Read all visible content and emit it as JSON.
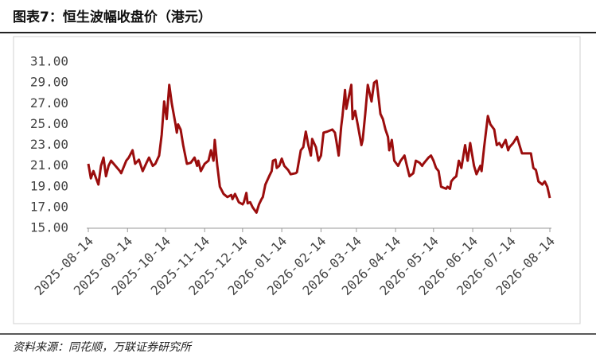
{
  "chart_data": {
    "type": "line",
    "title": "图表7：恒生波幅收盘价（港元）",
    "source": "资料来源：同花顺，万联证券研究所",
    "x": [
      "2025-08-14",
      "2025-08-16",
      "2025-08-18",
      "2025-08-22",
      "2025-08-24",
      "2025-08-26",
      "2025-08-28",
      "2025-08-30",
      "2025-09-01",
      "2025-09-08",
      "2025-09-09",
      "2025-09-13",
      "2025-09-15",
      "2025-09-18",
      "2025-09-20",
      "2025-09-23",
      "2025-09-26",
      "2025-09-29",
      "2025-10-01",
      "2025-10-04",
      "2025-10-06",
      "2025-10-09",
      "2025-10-11",
      "2025-10-13",
      "2025-10-15",
      "2025-10-17",
      "2025-10-19",
      "2025-10-22",
      "2025-10-23",
      "2025-10-24",
      "2025-10-26",
      "2025-10-28",
      "2025-10-31",
      "2025-11-03",
      "2025-11-06",
      "2025-11-08",
      "2025-11-09",
      "2025-11-11",
      "2025-11-14",
      "2025-11-17",
      "2025-11-19",
      "2025-11-21",
      "2025-11-22",
      "2025-11-24",
      "2025-11-26",
      "2025-11-29",
      "2025-12-02",
      "2025-12-05",
      "2025-12-06",
      "2025-12-08",
      "2025-12-11",
      "2025-12-14",
      "2025-12-15",
      "2025-12-17",
      "2025-12-18",
      "2025-12-20",
      "2025-12-22",
      "2025-12-25",
      "2025-12-27",
      "2025-12-29",
      "2025-12-30",
      "2026-01-01",
      "2026-01-04",
      "2026-01-06",
      "2026-01-07",
      "2026-01-09",
      "2026-01-10",
      "2026-01-12",
      "2026-01-14",
      "2026-01-16",
      "2026-01-19",
      "2026-01-21",
      "2026-01-25",
      "2026-01-26",
      "2026-01-29",
      "2026-01-31",
      "2026-02-02",
      "2026-02-04",
      "2026-02-06",
      "2026-02-07",
      "2026-02-10",
      "2026-02-12",
      "2026-02-14",
      "2026-02-16",
      "2026-02-19",
      "2026-02-23",
      "2026-02-25",
      "2026-02-26",
      "2026-02-28",
      "2026-03-02",
      "2026-03-03",
      "2026-03-05",
      "2026-03-06",
      "2026-03-10",
      "2026-03-11",
      "2026-03-13",
      "2026-03-15",
      "2026-03-18",
      "2026-03-19",
      "2026-03-21",
      "2026-03-23",
      "2026-03-26",
      "2026-03-28",
      "2026-03-30",
      "2026-04-02",
      "2026-04-04",
      "2026-04-06",
      "2026-04-08",
      "2026-04-09",
      "2026-04-11",
      "2026-04-13",
      "2026-04-16",
      "2026-04-18",
      "2026-04-21",
      "2026-04-23",
      "2026-04-25",
      "2026-04-28",
      "2026-04-30",
      "2026-05-03",
      "2026-05-05",
      "2026-05-06",
      "2026-05-08",
      "2026-05-10",
      "2026-05-12",
      "2026-05-14",
      "2026-05-16",
      "2026-05-18",
      "2026-05-20",
      "2026-05-24",
      "2026-05-25",
      "2026-05-27",
      "2026-05-28",
      "2026-05-30",
      "2026-06-01",
      "2026-06-03",
      "2026-06-05",
      "2026-06-08",
      "2026-06-10",
      "2026-06-12",
      "2026-06-15",
      "2026-06-17",
      "2026-06-20",
      "2026-06-21",
      "2026-06-23",
      "2026-06-26",
      "2026-06-28",
      "2026-07-01",
      "2026-07-03",
      "2026-07-05",
      "2026-07-07",
      "2026-07-10",
      "2026-07-12",
      "2026-07-13",
      "2026-07-16",
      "2026-07-19",
      "2026-07-23",
      "2026-07-27",
      "2026-07-30",
      "2026-08-01",
      "2026-08-03",
      "2026-08-05",
      "2026-08-08",
      "2026-08-10",
      "2026-08-12",
      "2026-08-14"
    ],
    "series": [
      {
        "name": "恒生波幅收盘价",
        "color": "#9b0d0d",
        "values": [
          21.2,
          19.8,
          20.5,
          19.2,
          21.0,
          21.8,
          20.0,
          21.0,
          21.5,
          20.5,
          20.3,
          21.5,
          21.8,
          22.5,
          21.2,
          21.6,
          20.5,
          21.3,
          21.8,
          21.0,
          21.2,
          22.0,
          24.0,
          27.2,
          25.5,
          28.8,
          27.0,
          25.0,
          24.2,
          25.0,
          24.5,
          23.0,
          21.2,
          21.3,
          21.8,
          21.0,
          21.5,
          20.5,
          21.2,
          21.5,
          22.5,
          21.5,
          23.5,
          21.0,
          19.0,
          18.3,
          18.0,
          18.2,
          17.8,
          18.3,
          17.5,
          17.3,
          17.5,
          18.4,
          17.4,
          17.5,
          17.0,
          16.5,
          17.3,
          17.8,
          18.0,
          19.2,
          20.0,
          20.5,
          21.5,
          21.6,
          20.8,
          21.0,
          21.7,
          21.0,
          20.6,
          20.2,
          20.3,
          20.4,
          22.5,
          22.8,
          24.3,
          23.0,
          22.0,
          23.6,
          22.8,
          21.5,
          22.0,
          24.2,
          24.3,
          24.5,
          24.2,
          23.5,
          22.0,
          24.8,
          25.8,
          28.3,
          26.5,
          28.8,
          25.5,
          26.3,
          25.0,
          23.0,
          23.5,
          26.0,
          28.8,
          27.2,
          29.0,
          29.2,
          26.0,
          25.5,
          24.5,
          23.8,
          22.5,
          23.5,
          21.5,
          21.0,
          21.5,
          22.0,
          21.0,
          20.0,
          20.3,
          21.5,
          21.3,
          21.0,
          21.2,
          21.5,
          21.8,
          22.0,
          21.5,
          20.8,
          20.5,
          19.0,
          18.8,
          19.0,
          18.8,
          19.5,
          19.8,
          20.0,
          21.5,
          20.8,
          23.0,
          21.5,
          23.2,
          21.0,
          20.2,
          21.0,
          20.5,
          22.8,
          25.8,
          25.0,
          24.5,
          23.0,
          23.2,
          22.8,
          23.5,
          22.5,
          22.8,
          23.2,
          23.8,
          22.2,
          22.2,
          22.2,
          20.8,
          20.6,
          19.5,
          19.2,
          19.5,
          19.0,
          17.9
        ]
      }
    ],
    "xlim": [
      "2025-08-14",
      "2026-08-14"
    ],
    "xticks": [
      "2025-08-14",
      "2025-09-14",
      "2025-10-14",
      "2025-11-14",
      "2025-12-14",
      "2026-01-14",
      "2026-02-14",
      "2026-03-14",
      "2026-04-14",
      "2026-05-14",
      "2026-06-14",
      "2026-07-14",
      "2026-08-14"
    ],
    "ylim": [
      15,
      31
    ],
    "yticks": [
      {
        "value": 15,
        "label": "15.00"
      },
      {
        "value": 17,
        "label": "17.00"
      },
      {
        "value": 19,
        "label": "19.00"
      },
      {
        "value": 21,
        "label": "21.00"
      },
      {
        "value": 23,
        "label": "23.00"
      },
      {
        "value": 25,
        "label": "25.00"
      },
      {
        "value": 27,
        "label": "27.00"
      },
      {
        "value": 29,
        "label": "29.00"
      },
      {
        "value": 31,
        "label": "31.00"
      }
    ],
    "grid": false
  }
}
